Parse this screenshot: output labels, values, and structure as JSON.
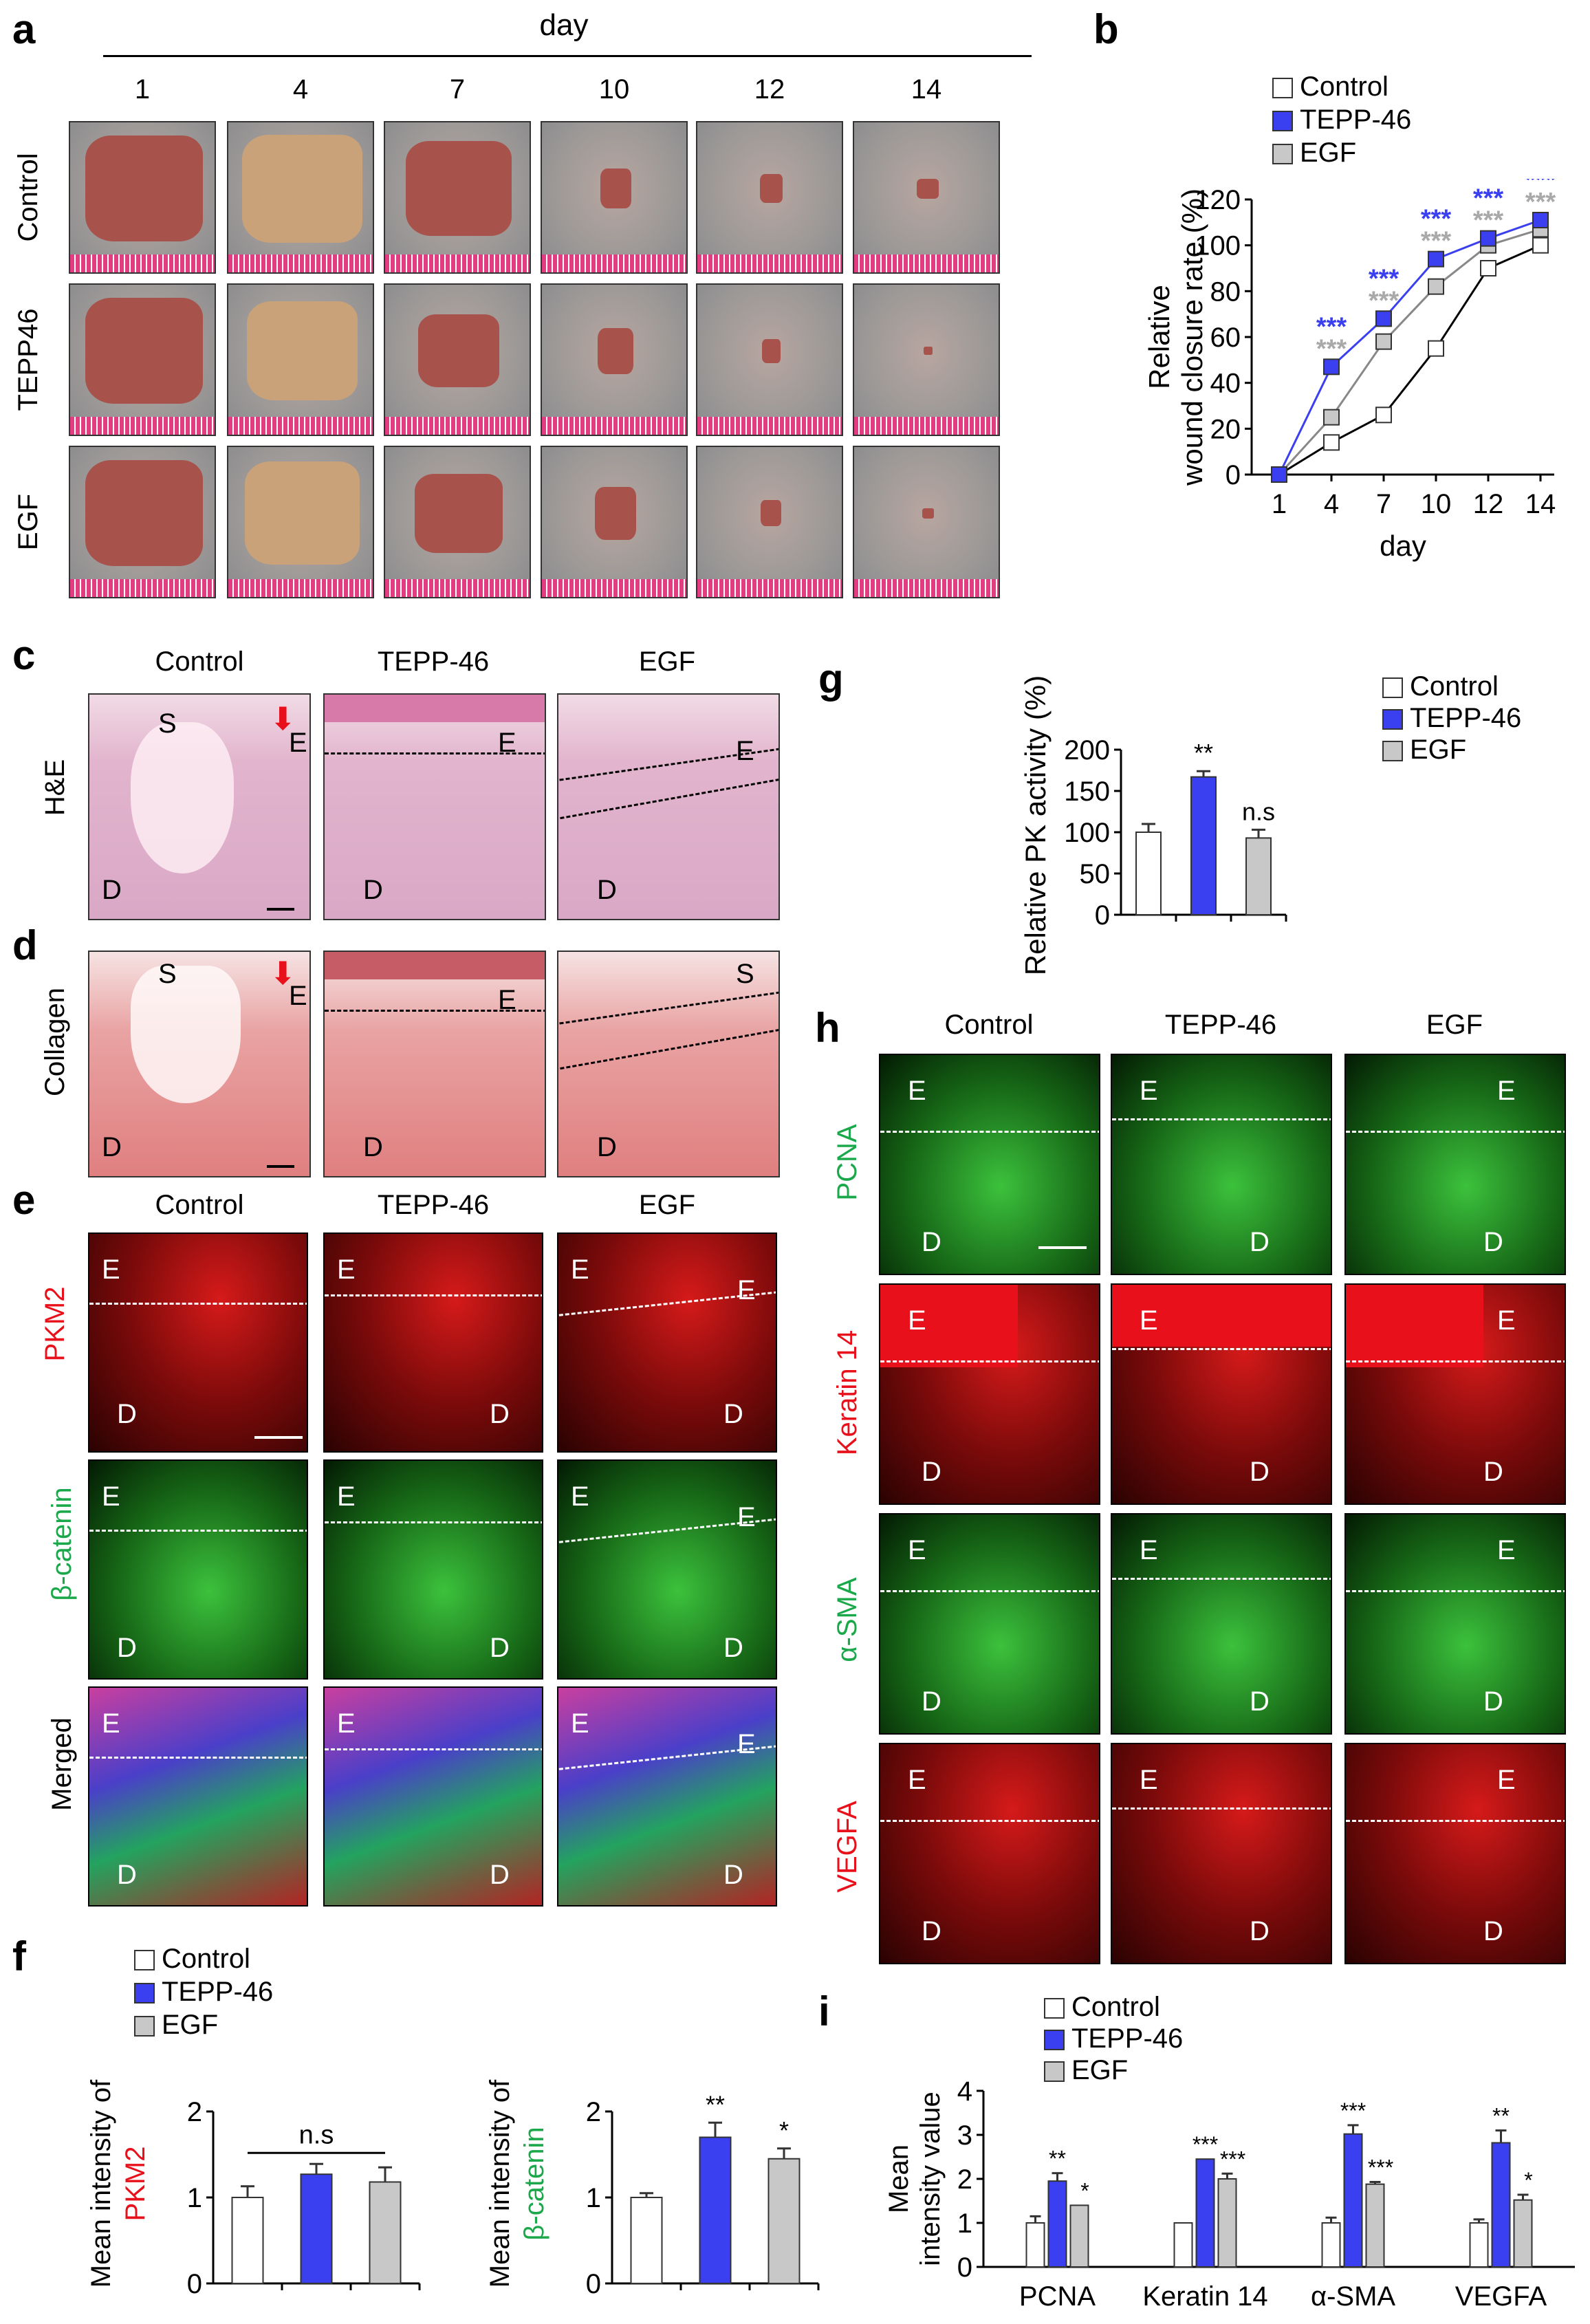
{
  "panels": {
    "a": {
      "label": "a",
      "axis_title": "day",
      "days": [
        "1",
        "4",
        "7",
        "10",
        "12",
        "14"
      ],
      "rows": [
        "Control",
        "TEPP46",
        "EGF"
      ],
      "colors": {
        "wound": "#a8524c",
        "tissue": "#9d9a98",
        "ruler": "#e23d83"
      }
    },
    "b": {
      "label": "b",
      "legend": [
        "Control",
        "TEPP-46",
        "EGF"
      ]
    },
    "c": {
      "label": "c",
      "columns": [
        "Control",
        "TEPP-46",
        "EGF"
      ],
      "row": "H&E"
    },
    "d": {
      "label": "d",
      "row": "Collagen"
    },
    "e": {
      "label": "e",
      "columns": [
        "Control",
        "TEPP-46",
        "EGF"
      ],
      "rows": [
        "PKM2",
        "β-catenin",
        "Merged"
      ]
    },
    "f": {
      "label": "f",
      "legend": [
        "Control",
        "TEPP-46",
        "EGF"
      ]
    },
    "g": {
      "label": "g",
      "legend": [
        "Control",
        "TEPP-46",
        "EGF"
      ]
    },
    "h": {
      "label": "h",
      "columns": [
        "Control",
        "TEPP-46",
        "EGF"
      ],
      "rows": [
        "PCNA",
        "Keratin 14",
        "α-SMA",
        "VEGFA"
      ]
    },
    "i": {
      "label": "i",
      "legend": [
        "Control",
        "TEPP-46",
        "EGF"
      ]
    }
  },
  "tissue_labels": {
    "S": "S",
    "E": "E",
    "D": "D"
  },
  "colors": {
    "control": "#ffffff",
    "tepp": "#3a3ff0",
    "egf": "#c8c8c8",
    "tepp_star": "#3a3ff0",
    "egf_star": "#a9a9a9",
    "pkm2": "#e8101a",
    "bcat": "#1aa84a"
  },
  "chart_data": [
    {
      "id": "b",
      "type": "line",
      "xlabel": "day",
      "ylabel": "Relative wound closure rate (%)",
      "categories": [
        "1",
        "4",
        "7",
        "10",
        "12",
        "14"
      ],
      "ylim": [
        0,
        120
      ],
      "yticks": [
        0,
        20,
        40,
        60,
        80,
        100,
        120
      ],
      "series": [
        {
          "name": "Control",
          "values": [
            0,
            14,
            26,
            55,
            90,
            100
          ]
        },
        {
          "name": "TEPP-46",
          "values": [
            0,
            47,
            68,
            94,
            103,
            111
          ]
        },
        {
          "name": "EGF",
          "values": [
            0,
            25,
            58,
            82,
            100,
            107
          ]
        }
      ],
      "annotations": {
        "tepp": [
          "",
          "***",
          "***",
          "***",
          "***",
          "***"
        ],
        "egf": [
          "",
          "***",
          "***",
          "***",
          "***",
          "***"
        ]
      }
    },
    {
      "id": "f1",
      "type": "bar",
      "ylabel_prefix": "Mean intensity of",
      "ylabel_marker": "PKM2",
      "categories": [
        "Control",
        "TEPP-46",
        "EGF"
      ],
      "values": [
        1.0,
        1.27,
        1.18
      ],
      "errors": [
        0.13,
        0.12,
        0.17
      ],
      "ylim": [
        0,
        2
      ],
      "yticks": [
        0,
        1,
        2
      ],
      "annotation": "n.s",
      "bar_labels": [
        "",
        "",
        ""
      ]
    },
    {
      "id": "f2",
      "type": "bar",
      "ylabel_prefix": "Mean intensity of",
      "ylabel_marker": "β-catenin",
      "categories": [
        "Control",
        "TEPP-46",
        "EGF"
      ],
      "values": [
        1.0,
        1.7,
        1.45
      ],
      "errors": [
        0.05,
        0.17,
        0.12
      ],
      "ylim": [
        0,
        2
      ],
      "yticks": [
        0,
        1,
        2
      ],
      "bar_labels": [
        "",
        "**",
        "*"
      ]
    },
    {
      "id": "g",
      "type": "bar",
      "ylabel": "Relative PK activity (%)",
      "categories": [
        "Control",
        "TEPP-46",
        "EGF"
      ],
      "values": [
        100,
        167,
        93
      ],
      "errors": [
        10,
        7,
        10
      ],
      "ylim": [
        0,
        200
      ],
      "yticks": [
        0,
        50,
        100,
        150,
        200
      ],
      "bar_labels": [
        "",
        "**",
        "n.s"
      ]
    },
    {
      "id": "i",
      "type": "bar",
      "ylabel": "Mean intensity value",
      "categories": [
        "PCNA",
        "Keratin 14",
        "α-SMA",
        "VEGFA"
      ],
      "ylim": [
        0,
        4
      ],
      "yticks": [
        0,
        1,
        2,
        3,
        4
      ],
      "series": [
        {
          "name": "Control",
          "values": [
            1.0,
            1.0,
            1.0,
            1.0
          ],
          "errors": [
            0.15,
            0.0,
            0.12,
            0.08
          ],
          "labels": [
            "",
            "",
            "",
            ""
          ]
        },
        {
          "name": "TEPP-46",
          "values": [
            1.95,
            2.45,
            3.02,
            2.82
          ],
          "errors": [
            0.18,
            0.0,
            0.2,
            0.28
          ],
          "labels": [
            "**",
            "***",
            "***",
            "**"
          ]
        },
        {
          "name": "EGF",
          "values": [
            1.4,
            2.0,
            1.88,
            1.52
          ],
          "errors": [
            0.0,
            0.12,
            0.05,
            0.12
          ],
          "labels": [
            "*",
            "***",
            "***",
            "*"
          ]
        }
      ]
    }
  ]
}
